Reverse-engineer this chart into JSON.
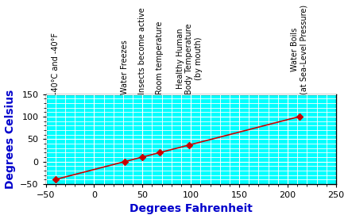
{
  "title": "",
  "xlabel": "Degrees Fahrenheit",
  "ylabel": "Degrees Celsius",
  "xlim": [
    -50,
    250
  ],
  "ylim": [
    -50,
    150
  ],
  "xticks": [
    -50,
    0,
    50,
    100,
    150,
    200,
    250
  ],
  "yticks": [
    -50,
    0,
    50,
    100,
    150
  ],
  "background_color": "#00FFFF",
  "grid_color": "#FFFFFF",
  "line_color": "#CC0000",
  "marker_color": "#CC0000",
  "points": [
    {
      "f": -40,
      "c": -40,
      "label": "-40°C and -40°F"
    },
    {
      "f": 32,
      "c": 0,
      "label": "Water Freezes"
    },
    {
      "f": 50,
      "c": 10,
      "label": "Insects become active"
    },
    {
      "f": 68,
      "c": 20,
      "label": "Room temperature"
    },
    {
      "f": 98.6,
      "c": 37,
      "label": "Healthy Human\nBody Temperature\n(by mouth)"
    },
    {
      "f": 212,
      "c": 100,
      "label": "Water Boils\n(at Sea-Level Pressure)"
    }
  ],
  "annotation_fontsize": 7.0,
  "axis_label_fontsize": 10,
  "tick_fontsize": 8,
  "axis_label_color": "#0000CC",
  "tick_color": "#000000",
  "minor_spacing_x": 10,
  "minor_spacing_y": 10
}
